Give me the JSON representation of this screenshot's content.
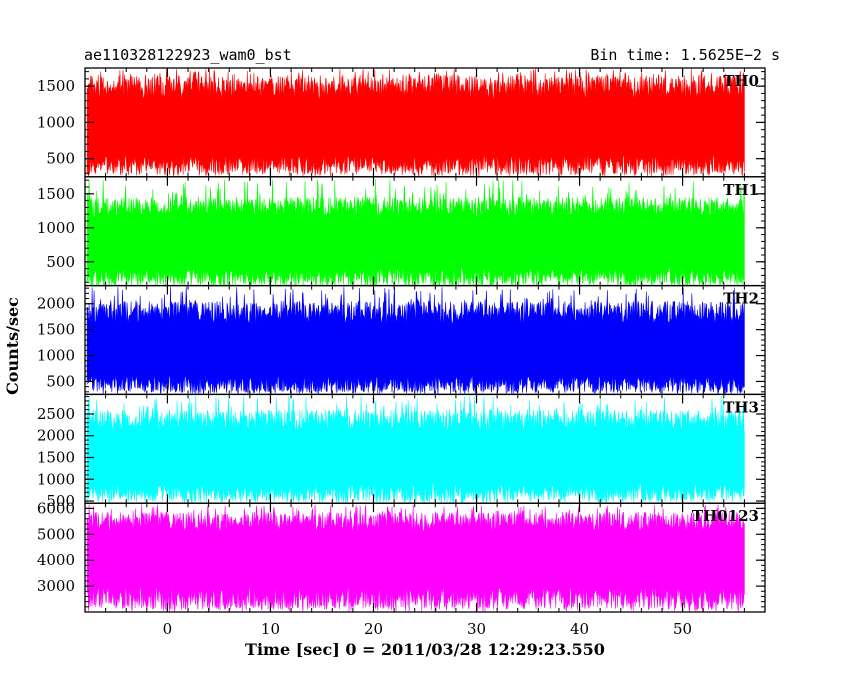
{
  "header": {
    "title": "ae110328122923_wam0_bst",
    "bin_time": "Bin time: 1.5625E−2 s"
  },
  "chart_data": {
    "type": "line",
    "title": "ae110328122923_wam0_bst",
    "subtitle": "Bin time: 1.5625E−2 s",
    "xlabel": "Time [sec] 0 = 2011/03/28 12:29:23.550",
    "ylabel": "Counts/sec",
    "xlim": [
      -8,
      58
    ],
    "x_ticks": [
      0,
      10,
      20,
      30,
      40,
      50
    ],
    "x_data_range": [
      -7.8,
      56
    ],
    "grid": false,
    "panels": [
      {
        "name": "TH0",
        "color": "#ff0000",
        "ylim": [
          250,
          1750
        ],
        "y_ticks": [
          500,
          1000,
          1500
        ],
        "mean": 900,
        "low": 280,
        "high": 1650,
        "peak": 1740
      },
      {
        "name": "TH1",
        "color": "#00ff00",
        "ylim": [
          150,
          1750
        ],
        "y_ticks": [
          500,
          1000,
          1500
        ],
        "mean": 760,
        "low": 150,
        "high": 1450,
        "peak": 1720
      },
      {
        "name": "TH2",
        "color": "#0000ff",
        "ylim": [
          250,
          2350
        ],
        "y_ticks": [
          500,
          1000,
          1500,
          2000
        ],
        "mean": 1050,
        "low": 280,
        "high": 2050,
        "peak": 2330
      },
      {
        "name": "TH3",
        "color": "#00ffff",
        "ylim": [
          450,
          2950
        ],
        "y_ticks": [
          500,
          1000,
          1500,
          2000,
          2500
        ],
        "mean": 1450,
        "low": 480,
        "high": 2600,
        "peak": 2930
      },
      {
        "name": "TH0123",
        "color": "#ff00ff",
        "ylim": [
          2000,
          6200
        ],
        "y_ticks": [
          3000,
          4000,
          5000,
          6000
        ],
        "mean": 4150,
        "low": 2100,
        "high": 5850,
        "peak": 6150
      }
    ]
  }
}
